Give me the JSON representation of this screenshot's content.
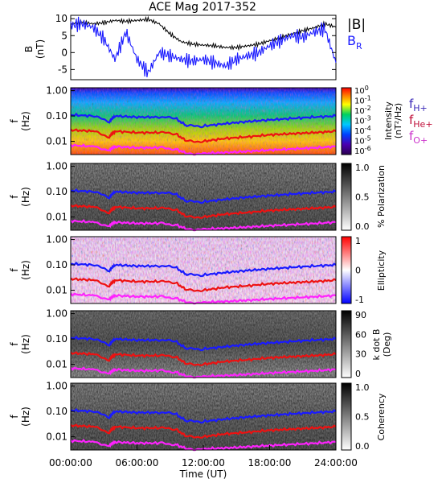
{
  "title": "ACE Mag 2017-352",
  "colors": {
    "total_b": "#000000",
    "b_r": "#1a1aff",
    "f_h": "#1a1aff",
    "f_he": "#ee1111",
    "f_o": "#ff22ff",
    "label_h": "#3b2ab8",
    "label_he": "#c0103a",
    "label_o": "#cc33cc"
  },
  "x_axis": {
    "label": "Time (UT)",
    "ticks": [
      "00:00:00",
      "06:00:00",
      "12:00:00",
      "18:00:00",
      "24:00:00"
    ],
    "range_hours": [
      0,
      24
    ]
  },
  "freq_axis": {
    "label_top": "f",
    "label_bottom": "(Hz)",
    "ticks": [
      "1.00",
      "0.10",
      "0.01"
    ],
    "range_hz": [
      0.003,
      1.3
    ]
  },
  "panel_b": {
    "ylabel_top": "B",
    "ylabel_bottom": "(nT)",
    "yticks": [
      "10",
      "5",
      "0",
      "-5"
    ],
    "legend_total": "|B|",
    "legend_br": "B",
    "legend_br_sub": "R"
  },
  "panel_intensity": {
    "label": "Intensity",
    "unit": "(nT²/Hz)",
    "colorbar_ticks": [
      {
        "base": "10",
        "exp": "0"
      },
      {
        "base": "10",
        "exp": "-1"
      },
      {
        "base": "10",
        "exp": "-2"
      },
      {
        "base": "10",
        "exp": "-3"
      },
      {
        "base": "10",
        "exp": "-4"
      },
      {
        "base": "10",
        "exp": "-5"
      },
      {
        "base": "10",
        "exp": "-6"
      }
    ],
    "legend": [
      {
        "main": "f",
        "sub": "H+"
      },
      {
        "main": "f",
        "sub": "He+"
      },
      {
        "main": "f",
        "sub": "O+"
      }
    ]
  },
  "panel_polarization": {
    "label": "% Polarization",
    "colorbar_ticks": [
      "1.0",
      "0.5",
      "0.0"
    ]
  },
  "panel_ellipticity": {
    "label": "Ellipticity",
    "colorbar_ticks": [
      "1",
      "0",
      "-1"
    ]
  },
  "panel_kdotb": {
    "label_top": "k dot B",
    "label_bottom": "(Deg)",
    "colorbar_ticks": [
      "90",
      "60",
      "30",
      "0"
    ]
  },
  "panel_coherency": {
    "label": "Coherency",
    "colorbar_ticks": [
      "1.0",
      "0.5",
      "0.0"
    ]
  },
  "chart_data": [
    {
      "type": "line",
      "title": "ACE Mag 2017-352",
      "xlabel": "Time (UT)",
      "ylabel": "B (nT)",
      "xlim": [
        0,
        24
      ],
      "ylim": [
        -8,
        11
      ],
      "series": [
        {
          "name": "|B|",
          "x": [
            0,
            1,
            2,
            3,
            4,
            5,
            6,
            7,
            8,
            9,
            10,
            11,
            12,
            13,
            14,
            15,
            16,
            17,
            18,
            19,
            20,
            21,
            22,
            23,
            24
          ],
          "values": [
            8.5,
            9,
            8.5,
            8.8,
            9.5,
            9.2,
            9.5,
            9.8,
            8.5,
            5.5,
            3.2,
            2.5,
            2.2,
            2,
            1.5,
            1.5,
            2,
            2.5,
            3.5,
            4.5,
            5.5,
            6.5,
            7.3,
            8.5,
            7.5
          ]
        },
        {
          "name": "B",
          "x": [
            0,
            1,
            2,
            3,
            4,
            5,
            6,
            7,
            8,
            9,
            10,
            11,
            12,
            13,
            14,
            15,
            16,
            17,
            18,
            19,
            20,
            21,
            22,
            23,
            24
          ],
          "values": [
            8,
            8.5,
            7.5,
            4,
            -2,
            6,
            -2,
            -6,
            0,
            -1,
            -2,
            -2.5,
            -2,
            -3,
            -4,
            -2,
            -1,
            0,
            2,
            3.5,
            5,
            4.5,
            6,
            7,
            -3
          ]
        }
      ]
    },
    {
      "type": "heatmap",
      "ylabel": "f (Hz)",
      "series": [
        {
          "name": "f H+",
          "x": [
            0,
            2,
            3.5,
            4,
            6,
            8,
            9.5,
            10.5,
            12,
            14,
            16,
            18,
            20,
            22,
            24
          ],
          "values": [
            0.11,
            0.1,
            0.06,
            0.1,
            0.09,
            0.09,
            0.08,
            0.04,
            0.04,
            0.05,
            0.06,
            0.07,
            0.08,
            0.09,
            0.1
          ]
        },
        {
          "name": "f He+",
          "x": [
            0,
            2,
            3.5,
            4,
            6,
            8,
            9.5,
            10.5,
            12,
            14,
            16,
            18,
            20,
            22,
            24
          ],
          "values": [
            0.028,
            0.025,
            0.015,
            0.025,
            0.022,
            0.022,
            0.02,
            0.01,
            0.01,
            0.013,
            0.015,
            0.018,
            0.02,
            0.022,
            0.025
          ]
        },
        {
          "name": "f O+",
          "x": [
            0,
            2,
            3.5,
            4,
            6,
            8,
            9.5,
            10.5,
            12,
            14,
            16,
            18,
            20,
            22,
            24
          ],
          "values": [
            0.007,
            0.0063,
            0.0045,
            0.0062,
            0.0056,
            0.0056,
            0.005,
            0.0033,
            0.0033,
            0.0036,
            0.004,
            0.0045,
            0.005,
            0.0055,
            0.0062
          ]
        }
      ]
    }
  ]
}
